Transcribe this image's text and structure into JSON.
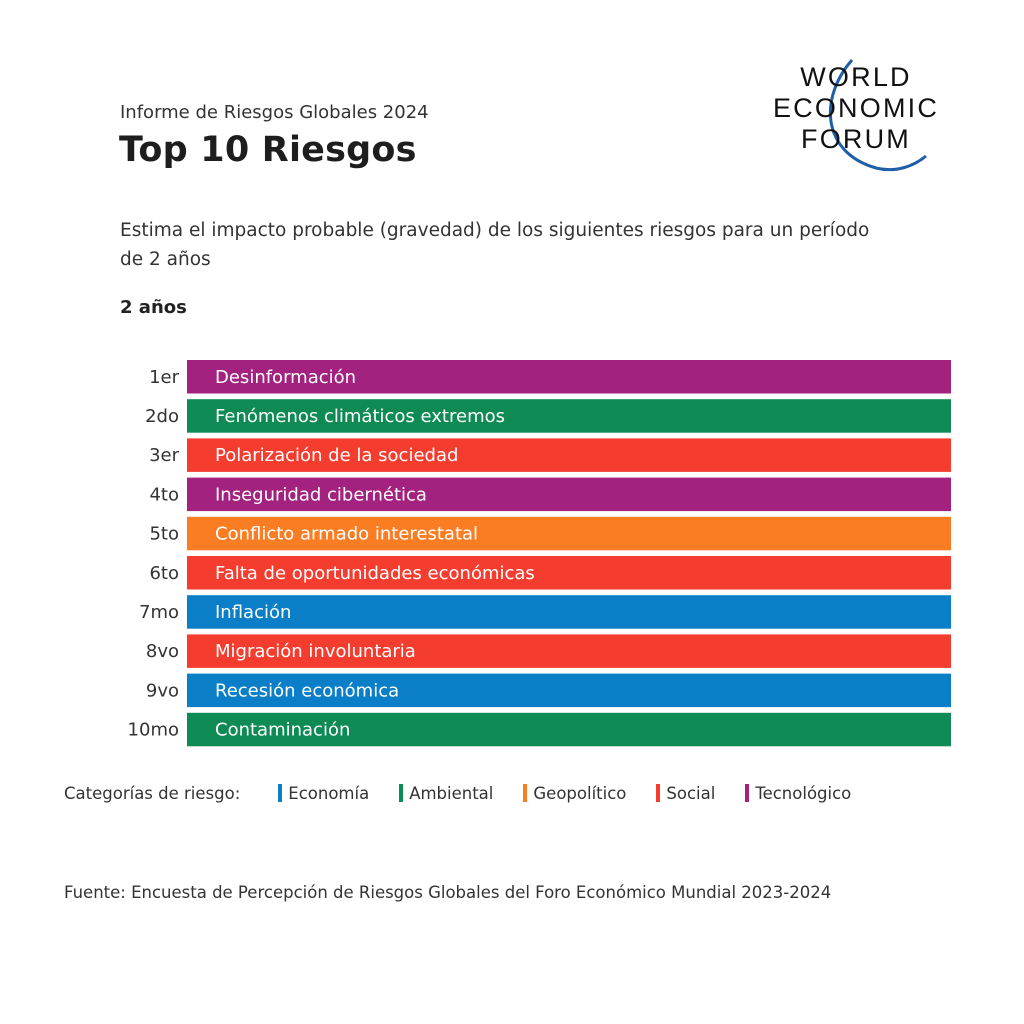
{
  "header": {
    "subtitle": "Informe de Riesgos Globales 2024",
    "title": "Top 10 Riesgos",
    "description": "Estima el impacto probable (gravedad) de los siguientes riesgos para un período de 2 años",
    "period": "2 años"
  },
  "logo": {
    "line1": "WORLD",
    "line2": "ECONOMIC",
    "line3": "FORUM"
  },
  "colors": {
    "Economía": "#0a7fc8",
    "Ambiental": "#0e8a55",
    "Geopolítico": "#fa7d23",
    "Social": "#f53d2f",
    "Tecnológico": "#a3217f"
  },
  "chart_data": {
    "type": "bar",
    "title": "Top 10 Riesgos",
    "xlabel": "",
    "ylabel": "",
    "categories": [
      "1er",
      "2do",
      "3er",
      "4to",
      "5to",
      "6to",
      "7mo",
      "8vo",
      "9vo",
      "10mo"
    ],
    "labels": [
      "Desinformación",
      "Fenómenos climáticos extremos",
      "Polarización de la sociedad",
      "Inseguridad cibernética",
      "Conflicto armado interestatal",
      "Falta de oportunidades económicas",
      "Inflación",
      "Migración involuntaria",
      "Recesión económica",
      "Contaminación"
    ],
    "risk_category": [
      "Tecnológico",
      "Ambiental",
      "Social",
      "Tecnológico",
      "Geopolítico",
      "Social",
      "Economía",
      "Social",
      "Economía",
      "Ambiental"
    ],
    "values": [
      1,
      1,
      1,
      1,
      1,
      1,
      1,
      1,
      1,
      1
    ]
  },
  "legend": {
    "title": "Categorías de riesgo:",
    "items": [
      "Economía",
      "Ambiental",
      "Geopolítico",
      "Social",
      "Tecnológico"
    ]
  },
  "source": "Fuente: Encuesta de Percepción de Riesgos Globales del Foro Económico Mundial 2023-2024"
}
